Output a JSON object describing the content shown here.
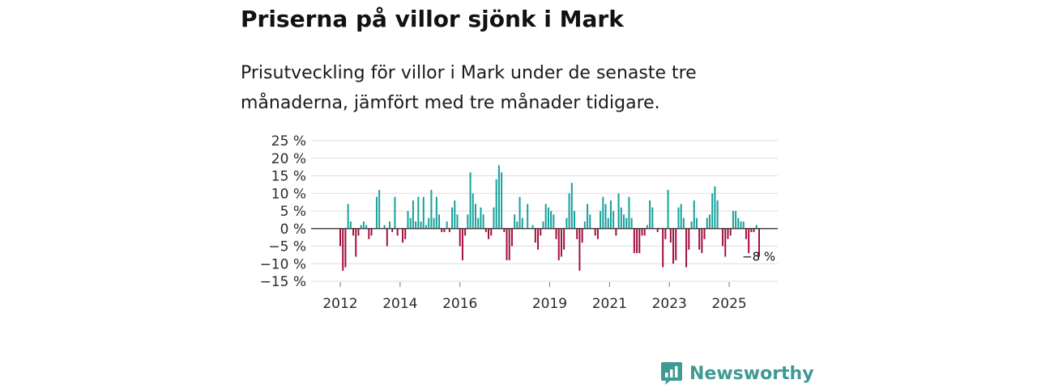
{
  "headline": "Priserna på villor sjönk i Mark",
  "subtitle": "Prisutveckling för villor i Mark under de senaste tre månaderna, jämfört med tre månader tidigare.",
  "brand": {
    "name": "Newsworthy",
    "color": "#3e9a92"
  },
  "colors": {
    "positive": "#15a09a",
    "negative": "#a30e3e",
    "grid": "#dddddd",
    "zero_line": "#444444"
  },
  "chart_data": {
    "type": "bar",
    "title": "Priserna på villor sjönk i Mark",
    "xlabel": "",
    "ylabel": "",
    "ylim": [
      -15,
      25
    ],
    "yticks": [
      25,
      20,
      15,
      10,
      5,
      0,
      -5,
      -10,
      -15
    ],
    "ytick_labels": [
      "25 %",
      "20 %",
      "15 %",
      "10 %",
      "5 %",
      "0 %",
      "−5 %",
      "−10 %",
      "−15 %"
    ],
    "x_start": 2012.0,
    "x_end": 2026.0,
    "x_step_months": 1,
    "xticks": [
      {
        "year": 2012,
        "label": "2012"
      },
      {
        "year": 2014,
        "label": "2014"
      },
      {
        "year": 2016,
        "label": "2016"
      },
      {
        "year": 2019,
        "label": "2019"
      },
      {
        "year": 2021,
        "label": "2021"
      },
      {
        "year": 2023,
        "label": "2023"
      },
      {
        "year": 2025,
        "label": "2025"
      }
    ],
    "values": [
      -5,
      -12,
      -11,
      7,
      2,
      -2,
      -8,
      -2,
      1,
      2,
      1,
      -3,
      -2,
      0,
      9,
      11,
      0,
      1,
      -5,
      2,
      -1,
      9,
      -2,
      0,
      -4,
      -3,
      5,
      3,
      8,
      2,
      9,
      2,
      9,
      1,
      3,
      11,
      3,
      9,
      4,
      -1,
      -1,
      2,
      -1,
      6,
      8,
      4,
      -5,
      -9,
      -2,
      4,
      16,
      10,
      7,
      3,
      6,
      4,
      -1,
      -3,
      -2,
      6,
      14,
      18,
      16,
      -1,
      -9,
      -9,
      -5,
      4,
      2,
      9,
      3,
      0,
      7,
      0,
      1,
      -4,
      -6,
      -2,
      2,
      7,
      6,
      5,
      4,
      -3,
      -9,
      -8,
      -6,
      3,
      10,
      13,
      5,
      -3,
      -12,
      -4,
      2,
      7,
      4,
      0,
      -2,
      -3,
      5,
      9,
      7,
      3,
      8,
      5,
      -2,
      10,
      6,
      4,
      3,
      9,
      3,
      -7,
      -7,
      -7,
      -2,
      -2,
      1,
      8,
      6,
      0,
      -1,
      0,
      -11,
      -3,
      11,
      -4,
      -10,
      -9,
      6,
      7,
      3,
      -11,
      -6,
      2,
      8,
      3,
      -6,
      -7,
      -3,
      3,
      4,
      10,
      12,
      8,
      0,
      -5,
      -8,
      -3,
      -2,
      5,
      5,
      3,
      2,
      2,
      -3,
      -7,
      -1,
      -1,
      1,
      -8
    ],
    "annotation": {
      "label": "−8 %",
      "value": -8
    }
  }
}
